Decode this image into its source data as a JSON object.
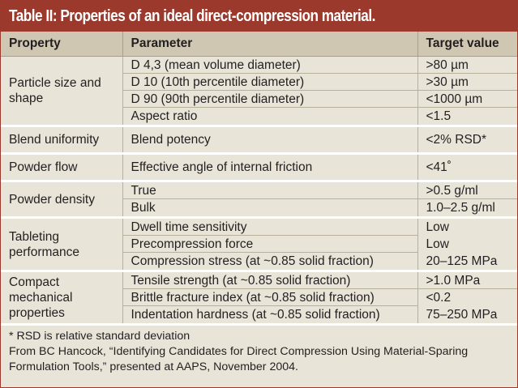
{
  "title": "Table II: Properties of an ideal direct-compression material.",
  "headers": {
    "property": "Property",
    "parameter": "Parameter",
    "target": "Target value"
  },
  "groups": [
    {
      "property": "Particle size and shape",
      "rows": [
        {
          "parameter": "D 4,3 (mean volume diameter)",
          "target": ">80 µm"
        },
        {
          "parameter": "D 10 (10th percentile diameter)",
          "target": ">30 µm"
        },
        {
          "parameter": "D 90 (90th percentile diameter)",
          "target": "<1000 µm"
        },
        {
          "parameter": "Aspect ratio",
          "target": "<1.5"
        }
      ]
    },
    {
      "property": "Blend uniformity",
      "rows": [
        {
          "parameter": "Blend potency",
          "target": "<2% RSD*"
        }
      ]
    },
    {
      "property": "Powder flow",
      "rows": [
        {
          "parameter": "Effective angle of internal friction",
          "target": "<41˚"
        }
      ]
    },
    {
      "property": "Powder density",
      "rows": [
        {
          "parameter": "True",
          "target": ">0.5 g/ml"
        },
        {
          "parameter": "Bulk",
          "target": "1.0–2.5 g/ml"
        }
      ]
    },
    {
      "property": "Tableting performance",
      "rows": [
        {
          "parameter": "Dwell time sensitivity",
          "target": "Low"
        },
        {
          "parameter": "Precompression force",
          "target": "Low"
        },
        {
          "parameter": "Compression stress (at ~0.85 solid fraction)",
          "target": "20–125 MPa"
        }
      ]
    },
    {
      "property": "Compact mechanical properties",
      "rows": [
        {
          "parameter": "Tensile strength (at ~0.85 solid fraction)",
          "target": ">1.0 MPa"
        },
        {
          "parameter": "Brittle fracture index (at ~0.85 solid fraction)",
          "target": "<0.2"
        },
        {
          "parameter": "Indentation hardness (at ~0.85 solid fraction)",
          "target": "75–250 MPa"
        }
      ]
    }
  ],
  "footnotes": {
    "rsd": "* RSD is relative standard deviation",
    "source_line1": "From BC Hancock, “Identifying Candidates for Direct Compression Using Material-Sparing",
    "source_line2": "Formulation Tools,” presented at AAPS, November 2004."
  },
  "colors": {
    "title_bar": "#9b3a2c",
    "header_bg": "#cfc7b2",
    "body_bg": "#e9e4d8"
  }
}
